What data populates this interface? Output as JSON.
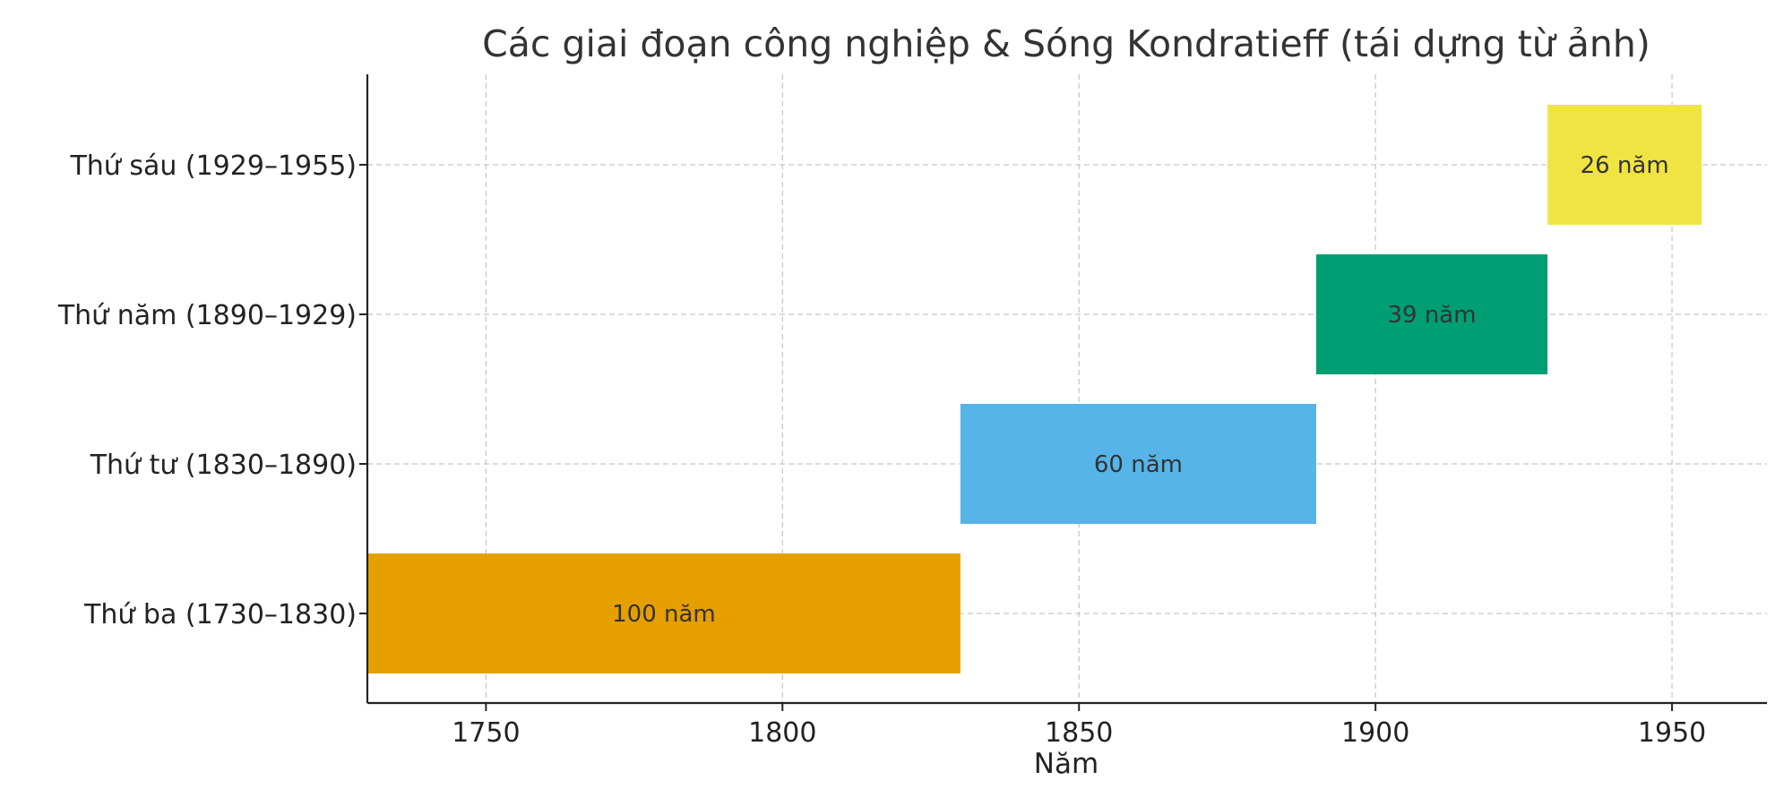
{
  "chart_data": {
    "type": "bar",
    "orientation": "horizontal",
    "title": "Các giai đoạn công nghiệp & Sóng Kondratieff (tái dựng từ ảnh)",
    "xlabel": "Năm",
    "ylabel": "",
    "xlim": [
      1730,
      1966
    ],
    "xticks": [
      1750,
      1800,
      1850,
      1900,
      1950
    ],
    "grid": true,
    "categories": [
      "Thứ ba (1730–1830)",
      "Thứ tư (1830–1890)",
      "Thứ năm (1890–1929)",
      "Thứ sáu (1929–1955)"
    ],
    "bars": [
      {
        "category": "Thứ ba (1730–1830)",
        "start": 1730,
        "end": 1830,
        "label": "100 năm",
        "color": "#E69F00"
      },
      {
        "category": "Thứ tư (1830–1890)",
        "start": 1830,
        "end": 1890,
        "label": "60 năm",
        "color": "#56B4E9"
      },
      {
        "category": "Thứ năm (1890–1929)",
        "start": 1890,
        "end": 1929,
        "label": "39 năm",
        "color": "#009E73"
      },
      {
        "category": "Thứ sáu (1929–1955)",
        "start": 1929,
        "end": 1955,
        "label": "26 năm",
        "color": "#F0E442"
      }
    ]
  }
}
